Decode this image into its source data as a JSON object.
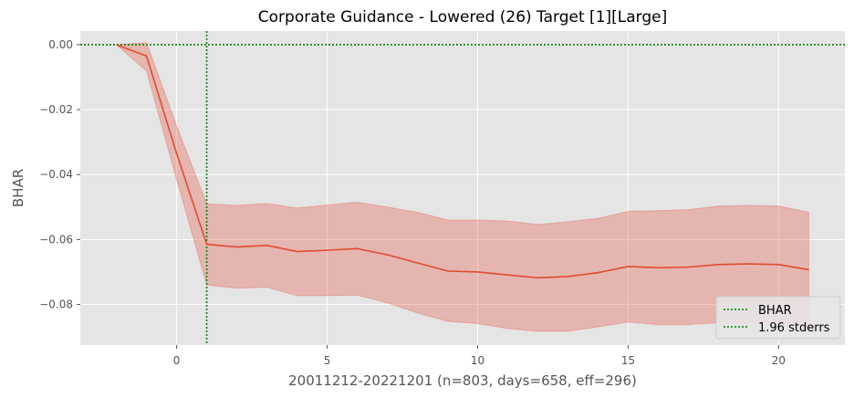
{
  "chart_data": {
    "type": "line",
    "title": "Corporate Guidance - Lowered (26) Target [1][Large]",
    "xlabel": "20011212-20221201 (n=803, days=658, eff=296)",
    "ylabel": "BHAR",
    "xlim": [
      -3.2,
      22.2
    ],
    "ylim": [
      -0.0925,
      0.0042
    ],
    "xticks": [
      0,
      5,
      10,
      15,
      20
    ],
    "xtick_labels": [
      "0",
      "5",
      "10",
      "15",
      "20"
    ],
    "yticks": [
      0.0,
      -0.02,
      -0.04,
      -0.06,
      -0.08
    ],
    "ytick_labels": [
      "0.00",
      "−0.02",
      "−0.04",
      "−0.06",
      "−0.08"
    ],
    "grid": true,
    "legend_position": "bottom-right",
    "legend": [
      "BHAR",
      "1.96 stderrs"
    ],
    "series": [
      {
        "name": "BHAR",
        "color": "#e24a33",
        "x": [
          -2,
          -1,
          0,
          1,
          2,
          3,
          4,
          5,
          6,
          7,
          8,
          9,
          10,
          11,
          12,
          13,
          14,
          15,
          16,
          17,
          18,
          19,
          20,
          21
        ],
        "y": [
          0.0,
          -0.0035,
          -0.0335,
          -0.0615,
          -0.0623,
          -0.0618,
          -0.0637,
          -0.0633,
          -0.0628,
          -0.0647,
          -0.0672,
          -0.0697,
          -0.07,
          -0.0709,
          -0.0718,
          -0.0714,
          -0.0702,
          -0.0683,
          -0.0687,
          -0.0685,
          -0.0677,
          -0.0675,
          -0.0677,
          -0.0693
        ],
        "upper": [
          0.0,
          0.0006,
          -0.025,
          -0.049,
          -0.0495,
          -0.0489,
          -0.0503,
          -0.0494,
          -0.0485,
          -0.05,
          -0.0516,
          -0.054,
          -0.054,
          -0.0543,
          -0.0554,
          -0.0545,
          -0.0535,
          -0.0513,
          -0.0511,
          -0.0508,
          -0.0497,
          -0.0495,
          -0.0497,
          -0.0516
        ],
        "lower": [
          0.0,
          -0.0081,
          -0.0415,
          -0.074,
          -0.075,
          -0.0747,
          -0.0773,
          -0.0773,
          -0.0771,
          -0.0795,
          -0.0826,
          -0.0852,
          -0.0859,
          -0.0874,
          -0.0883,
          -0.0883,
          -0.0869,
          -0.0854,
          -0.0862,
          -0.0862,
          -0.0856,
          -0.0856,
          -0.0857,
          -0.087
        ],
        "band_color": "#e24a33"
      }
    ],
    "reference_lines": [
      {
        "orientation": "horizontal",
        "value": 0.0,
        "color": "#008000",
        "style": "dotted"
      },
      {
        "orientation": "vertical",
        "value": 1,
        "color": "#008000",
        "style": "dotted"
      }
    ]
  },
  "colors": {
    "plot_background": "#e5e5e5",
    "grid": "#ffffff",
    "line": "#e24a33",
    "reference": "#008000"
  }
}
